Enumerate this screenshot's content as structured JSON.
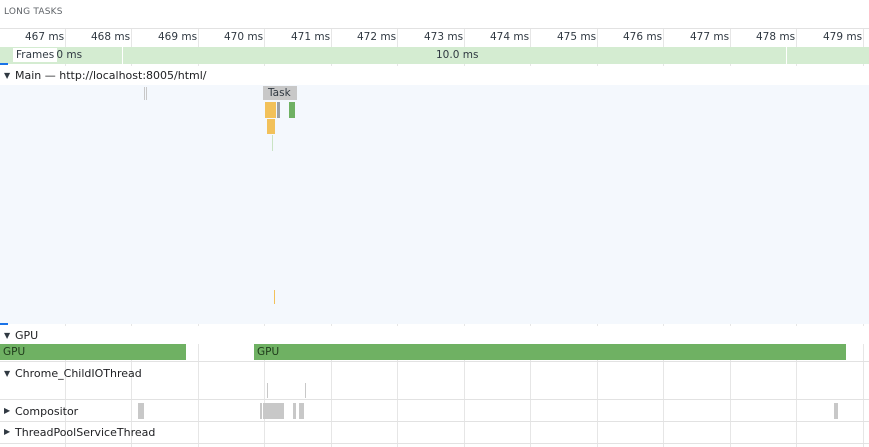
{
  "long_tasks": {
    "label": "LONG TASKS"
  },
  "ruler": {
    "ticks": [
      "467 ms",
      "468 ms",
      "469 ms",
      "470 ms",
      "471 ms",
      "472 ms",
      "473 ms",
      "474 ms",
      "475 ms",
      "476 ms",
      "477 ms",
      "478 ms",
      "479 ms"
    ]
  },
  "frames": {
    "label": "Frames",
    "left_duration": ".0 ms",
    "main_duration": "10.0 ms"
  },
  "main": {
    "title": "Main — http://localhost:8005/html/",
    "task_label": "Task"
  },
  "gpu": {
    "title": "GPU",
    "bar1_label": "GPU",
    "bar2_label": "GPU"
  },
  "child_io": {
    "title": "Chrome_ChildIOThread"
  },
  "compositor": {
    "title": "Compositor"
  },
  "thread_pool": {
    "title": "ThreadPoolServiceThread"
  },
  "colors": {
    "frames_bg": "#d4ecd1",
    "gpu_bar": "#6fb163",
    "task_gray": "#c8c8c8",
    "scripting_yellow": "#f2c15a",
    "painting_green": "#6fb163",
    "main_bg": "#f4f8fd"
  }
}
